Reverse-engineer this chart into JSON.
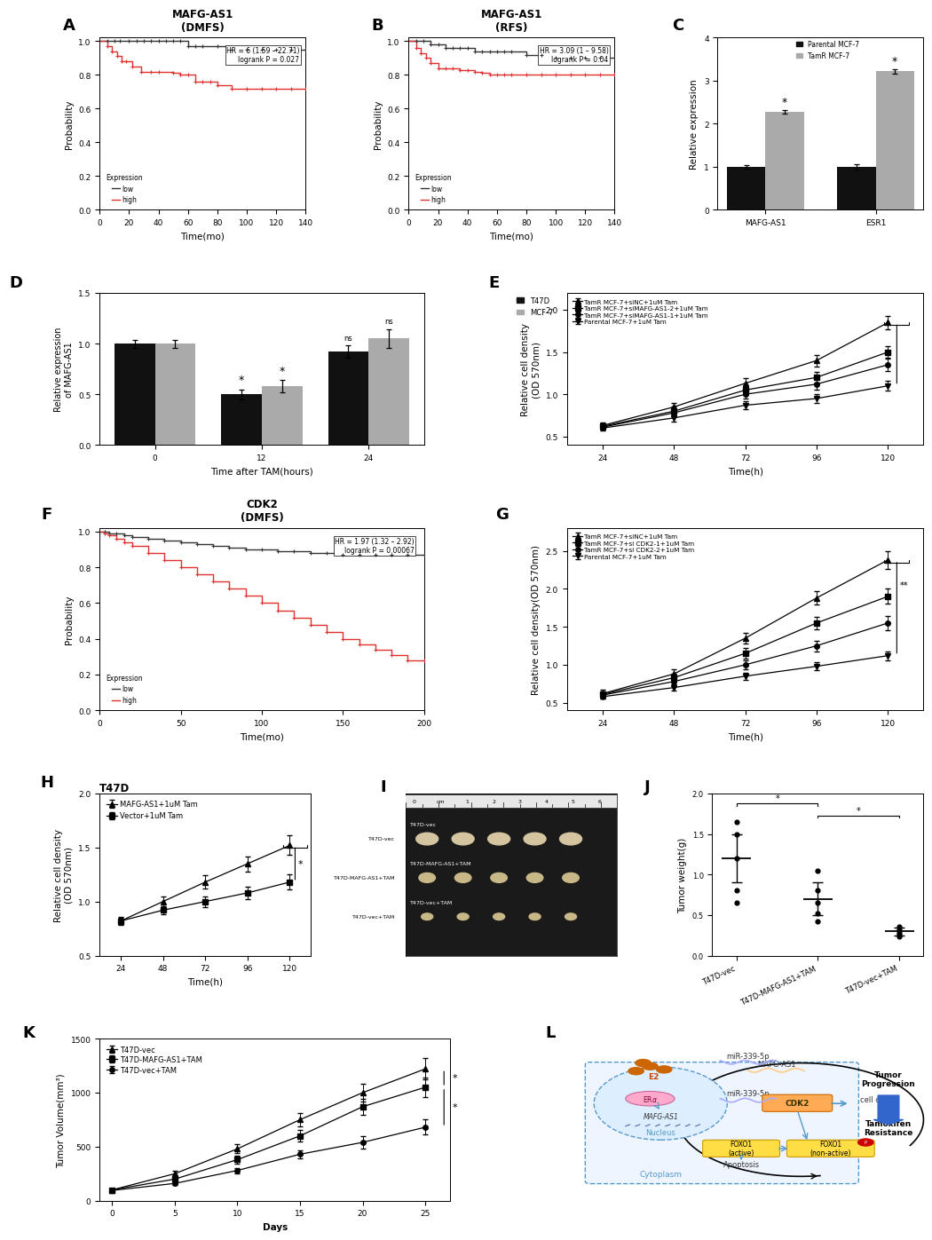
{
  "panel_A": {
    "title": "MAFG-AS1\n(DMFS)",
    "xlabel": "Time(mo)",
    "ylabel": "Probability",
    "xlim": [
      0,
      140
    ],
    "ylim": [
      0.0,
      1.02
    ],
    "yticks": [
      0.0,
      0.2,
      0.4,
      0.6,
      0.8,
      1.0
    ],
    "xticks": [
      0,
      20,
      40,
      60,
      80,
      100,
      120,
      140
    ],
    "annotation": "HR = 6 (1.59 – 22.71)\nlogrank P = 0.027",
    "low_color": "#333333",
    "high_color": "#e03030",
    "low_x": [
      0,
      5,
      10,
      14,
      20,
      25,
      30,
      35,
      40,
      45,
      50,
      55,
      60,
      65,
      70,
      80,
      90,
      100,
      110,
      120,
      130,
      140
    ],
    "low_y": [
      1.0,
      1.0,
      1.0,
      1.0,
      1.0,
      1.0,
      1.0,
      1.0,
      1.0,
      1.0,
      1.0,
      1.0,
      0.97,
      0.97,
      0.97,
      0.97,
      0.95,
      0.95,
      0.95,
      0.95,
      0.95,
      0.95
    ],
    "low_censor_x": [
      5,
      10,
      14,
      20,
      25,
      30,
      35,
      40,
      45,
      50,
      55,
      60,
      65,
      70,
      80,
      90,
      100,
      110,
      120,
      130,
      140
    ],
    "high_x": [
      0,
      5,
      8,
      12,
      15,
      18,
      22,
      28,
      35,
      40,
      50,
      55,
      60,
      65,
      70,
      75,
      80,
      90,
      100,
      110,
      120,
      130,
      140
    ],
    "high_y": [
      1.0,
      0.97,
      0.94,
      0.91,
      0.88,
      0.88,
      0.85,
      0.82,
      0.82,
      0.82,
      0.81,
      0.8,
      0.8,
      0.76,
      0.76,
      0.76,
      0.74,
      0.72,
      0.72,
      0.72,
      0.72,
      0.72,
      0.72
    ],
    "high_censor_x": [
      5,
      8,
      12,
      15,
      18,
      22,
      28,
      35,
      40,
      50,
      55,
      60,
      65,
      70,
      75,
      80,
      90,
      100,
      110,
      120,
      130,
      140
    ]
  },
  "panel_B": {
    "title": "MAFG-AS1\n(RFS)",
    "xlabel": "Time(mo)",
    "ylabel": "Probability",
    "xlim": [
      0,
      140
    ],
    "ylim": [
      0.0,
      1.02
    ],
    "yticks": [
      0.0,
      0.2,
      0.4,
      0.6,
      0.8,
      1.0
    ],
    "xticks": [
      0,
      20,
      40,
      60,
      80,
      100,
      120,
      140
    ],
    "annotation": "HR = 3.09 (1 – 9.58)\nlogrank P = 0.04",
    "low_color": "#333333",
    "high_color": "#e03030",
    "low_x": [
      0,
      5,
      10,
      15,
      20,
      25,
      30,
      35,
      40,
      45,
      50,
      55,
      60,
      65,
      70,
      80,
      90,
      100,
      110,
      120,
      130,
      140
    ],
    "low_y": [
      1.0,
      1.0,
      1.0,
      0.98,
      0.98,
      0.96,
      0.96,
      0.96,
      0.96,
      0.94,
      0.94,
      0.94,
      0.94,
      0.94,
      0.94,
      0.92,
      0.92,
      0.9,
      0.9,
      0.9,
      0.9,
      0.9
    ],
    "low_censor_x": [
      5,
      10,
      15,
      20,
      25,
      30,
      35,
      40,
      45,
      50,
      55,
      60,
      65,
      70,
      80,
      90,
      100,
      110,
      120,
      130,
      140
    ],
    "high_x": [
      0,
      5,
      8,
      12,
      15,
      20,
      25,
      30,
      35,
      40,
      45,
      50,
      55,
      60,
      65,
      70,
      80,
      90,
      100,
      110,
      120,
      130,
      140
    ],
    "high_y": [
      1.0,
      0.96,
      0.93,
      0.9,
      0.87,
      0.84,
      0.84,
      0.84,
      0.83,
      0.83,
      0.82,
      0.81,
      0.8,
      0.8,
      0.8,
      0.8,
      0.8,
      0.8,
      0.8,
      0.8,
      0.8,
      0.8,
      0.8
    ],
    "high_censor_x": [
      5,
      8,
      12,
      15,
      20,
      25,
      30,
      35,
      40,
      45,
      50,
      55,
      60,
      65,
      70,
      80,
      90,
      100,
      110,
      120,
      130,
      140
    ]
  },
  "panel_C": {
    "ylabel": "Relative expression",
    "categories": [
      "MAFG-AS1",
      "ESR1"
    ],
    "parental_vals": [
      1.0,
      1.0
    ],
    "tamr_vals": [
      2.28,
      3.22
    ],
    "parental_err": [
      0.05,
      0.07
    ],
    "tamr_err": [
      0.04,
      0.05
    ],
    "parental_color": "#111111",
    "tamr_color": "#aaaaaa",
    "ylim": [
      0,
      4
    ],
    "yticks": [
      0,
      1,
      2,
      3,
      4
    ]
  },
  "panel_D": {
    "ylabel": "Relative expression\nof MAFG-AS1",
    "xlabel": "Time after TAM(hours)",
    "t47d_vals": [
      1.0,
      0.5,
      0.92
    ],
    "mcf7_vals": [
      1.0,
      0.58,
      1.05
    ],
    "t47d_err": [
      0.04,
      0.05,
      0.06
    ],
    "mcf7_err": [
      0.04,
      0.06,
      0.09
    ],
    "t47d_color": "#111111",
    "mcf7_color": "#aaaaaa",
    "ylim": [
      0,
      1.5
    ],
    "yticks": [
      0.0,
      0.5,
      1.0,
      1.5
    ],
    "xtick_labels": [
      "0",
      "12",
      "24"
    ]
  },
  "panel_E": {
    "xlabel": "Time(h)",
    "ylabel": "Relative cell density\n(OD 570nm)",
    "xlim": [
      12,
      132
    ],
    "ylim": [
      0.4,
      2.2
    ],
    "xticks": [
      24,
      48,
      72,
      96,
      120
    ],
    "yticks": [
      0.5,
      1.0,
      1.5,
      2.0
    ],
    "series": [
      {
        "label": "TamR MCF-7+siNC+1uM Tam",
        "marker": "^",
        "x": [
          24,
          48,
          72,
          96,
          120
        ],
        "y": [
          0.63,
          0.85,
          1.13,
          1.4,
          1.85
        ]
      },
      {
        "label": "TamR MCF-7+siMAFG-AS1-2+1uM Tam",
        "marker": "s",
        "x": [
          24,
          48,
          72,
          96,
          120
        ],
        "y": [
          0.62,
          0.8,
          1.05,
          1.2,
          1.5
        ]
      },
      {
        "label": "TamR MCF-7+siMAFG-AS1-1+1uM Tam",
        "marker": "o",
        "x": [
          24,
          48,
          72,
          96,
          120
        ],
        "y": [
          0.61,
          0.78,
          1.0,
          1.12,
          1.35
        ]
      },
      {
        "label": "Parental MCF-7+1uM Tam",
        "marker": "v",
        "x": [
          24,
          48,
          72,
          96,
          120
        ],
        "y": [
          0.6,
          0.72,
          0.87,
          0.95,
          1.1
        ]
      }
    ],
    "err": [
      [
        0.04,
        0.05,
        0.06,
        0.07,
        0.08
      ],
      [
        0.04,
        0.05,
        0.06,
        0.06,
        0.07
      ],
      [
        0.03,
        0.04,
        0.05,
        0.06,
        0.07
      ],
      [
        0.03,
        0.04,
        0.05,
        0.05,
        0.06
      ]
    ]
  },
  "panel_F": {
    "title": "CDK2\n(DMFS)",
    "xlabel": "Time(mo)",
    "ylabel": "Probability",
    "xlim": [
      0,
      200
    ],
    "ylim": [
      0.0,
      1.02
    ],
    "yticks": [
      0.0,
      0.2,
      0.4,
      0.6,
      0.8,
      1.0
    ],
    "xticks": [
      0,
      50,
      100,
      150,
      200
    ],
    "annotation": "HR = 1.97 (1.32 – 2.92)\nlogrank P = 0.00067",
    "low_color": "#333333",
    "high_color": "#e03030",
    "low_x": [
      0,
      3,
      6,
      10,
      15,
      20,
      30,
      40,
      50,
      60,
      70,
      80,
      90,
      100,
      110,
      120,
      130,
      140,
      150,
      160,
      170,
      180,
      190,
      200
    ],
    "low_y": [
      1.0,
      1.0,
      0.99,
      0.99,
      0.98,
      0.97,
      0.96,
      0.95,
      0.94,
      0.93,
      0.92,
      0.91,
      0.9,
      0.9,
      0.89,
      0.89,
      0.88,
      0.88,
      0.87,
      0.87,
      0.87,
      0.87,
      0.87,
      0.87
    ],
    "low_censor_x": [
      3,
      6,
      10,
      15,
      20,
      30,
      40,
      50,
      60,
      70,
      80,
      90,
      100,
      110,
      120,
      130,
      140,
      150,
      160,
      170,
      180,
      190,
      200
    ],
    "high_x": [
      0,
      3,
      6,
      10,
      15,
      20,
      30,
      40,
      50,
      60,
      70,
      80,
      90,
      100,
      110,
      120,
      130,
      140,
      150,
      160,
      170,
      180,
      190,
      200
    ],
    "high_y": [
      1.0,
      0.99,
      0.98,
      0.96,
      0.94,
      0.92,
      0.88,
      0.84,
      0.8,
      0.76,
      0.72,
      0.68,
      0.64,
      0.6,
      0.56,
      0.52,
      0.48,
      0.44,
      0.4,
      0.37,
      0.34,
      0.31,
      0.28,
      0.28
    ],
    "high_censor_x": [
      3,
      6,
      10,
      15,
      20,
      30,
      40,
      50,
      60,
      70,
      80,
      90,
      100,
      110,
      120,
      130,
      140,
      150,
      160,
      170,
      180,
      190,
      200
    ]
  },
  "panel_G": {
    "xlabel": "Time(h)",
    "ylabel": "Relative cell density(OD 570nm)",
    "xlim": [
      12,
      132
    ],
    "ylim": [
      0.4,
      2.8
    ],
    "xticks": [
      24,
      48,
      72,
      96,
      120
    ],
    "yticks": [
      0.5,
      1.0,
      1.5,
      2.0,
      2.5
    ],
    "series": [
      {
        "label": "TamR MCF-7+siNC+1uM Tam",
        "marker": "^",
        "x": [
          24,
          48,
          72,
          96,
          120
        ],
        "y": [
          0.62,
          0.88,
          1.35,
          1.88,
          2.38
        ]
      },
      {
        "label": "TamR MCF-7+si CDK2-1+1uM Tam",
        "marker": "s",
        "x": [
          24,
          48,
          72,
          96,
          120
        ],
        "y": [
          0.61,
          0.83,
          1.15,
          1.55,
          1.9
        ]
      },
      {
        "label": "TamR MCF-7+si CDK2-2+1uM Tam",
        "marker": "o",
        "x": [
          24,
          48,
          72,
          96,
          120
        ],
        "y": [
          0.6,
          0.78,
          1.0,
          1.25,
          1.55
        ]
      },
      {
        "label": "Parental MCF-7+1uM Tam",
        "marker": "v",
        "x": [
          24,
          48,
          72,
          96,
          120
        ],
        "y": [
          0.58,
          0.7,
          0.85,
          0.98,
          1.12
        ]
      }
    ],
    "err": [
      [
        0.05,
        0.06,
        0.07,
        0.09,
        0.12
      ],
      [
        0.04,
        0.05,
        0.07,
        0.08,
        0.1
      ],
      [
        0.04,
        0.05,
        0.06,
        0.07,
        0.09
      ],
      [
        0.03,
        0.04,
        0.05,
        0.05,
        0.06
      ]
    ]
  },
  "panel_H": {
    "title": "T47D",
    "xlabel": "Time(h)",
    "ylabel": "Relative cell density\n(OD 570nm)",
    "xlim": [
      12,
      132
    ],
    "ylim": [
      0.5,
      2.0
    ],
    "xticks": [
      24,
      48,
      72,
      96,
      120
    ],
    "yticks": [
      0.5,
      1.0,
      1.5,
      2.0
    ],
    "series": [
      {
        "label": "MAFG-AS1+1uM Tam",
        "marker": "^",
        "x": [
          24,
          48,
          72,
          96,
          120
        ],
        "y": [
          0.82,
          1.0,
          1.18,
          1.35,
          1.52
        ]
      },
      {
        "label": "Vector+1uM Tam",
        "marker": "s",
        "x": [
          24,
          48,
          72,
          96,
          120
        ],
        "y": [
          0.82,
          0.92,
          1.0,
          1.08,
          1.18
        ]
      }
    ],
    "err": [
      [
        0.04,
        0.05,
        0.06,
        0.07,
        0.09
      ],
      [
        0.03,
        0.04,
        0.05,
        0.06,
        0.07
      ]
    ]
  },
  "panel_J": {
    "ylabel": "Tumor weight(g)",
    "categories": [
      "T47D-vec",
      "T47D-MAFG-AS1+TAM",
      "T47D-vec+TAM"
    ],
    "means": [
      1.2,
      0.7,
      0.3
    ],
    "errors": [
      0.3,
      0.2,
      0.05
    ],
    "scatter_points": [
      [
        1.65,
        1.5,
        1.2,
        0.8,
        0.65
      ],
      [
        1.05,
        0.8,
        0.65,
        0.52,
        0.42
      ],
      [
        0.36,
        0.32,
        0.28,
        0.26,
        0.24
      ]
    ],
    "ylim": [
      0,
      2.0
    ],
    "yticks": [
      0.0,
      0.5,
      1.0,
      1.5,
      2.0
    ]
  },
  "panel_K": {
    "xlabel": "Days",
    "ylabel": "Tumor Volume(mm³)",
    "xlim": [
      -1,
      27
    ],
    "ylim": [
      0,
      1500
    ],
    "xticks": [
      0,
      5,
      10,
      15,
      20,
      25
    ],
    "yticks": [
      0,
      500,
      1000,
      1500
    ],
    "series": [
      {
        "label": "T47D-vec",
        "marker": "^",
        "x": [
          0,
          5,
          10,
          15,
          20,
          25
        ],
        "y": [
          100,
          250,
          480,
          750,
          1000,
          1220
        ]
      },
      {
        "label": "T47D-MAFG-AS1+TAM",
        "marker": "s",
        "x": [
          0,
          5,
          10,
          15,
          20,
          25
        ],
        "y": [
          100,
          200,
          380,
          600,
          870,
          1050
        ]
      },
      {
        "label": "T47D-vec+TAM",
        "marker": "o",
        "x": [
          0,
          5,
          10,
          15,
          20,
          25
        ],
        "y": [
          95,
          160,
          280,
          430,
          540,
          680
        ]
      }
    ],
    "err": [
      [
        10,
        25,
        40,
        60,
        80,
        100
      ],
      [
        10,
        20,
        35,
        55,
        75,
        90
      ],
      [
        8,
        15,
        25,
        40,
        55,
        70
      ]
    ]
  }
}
